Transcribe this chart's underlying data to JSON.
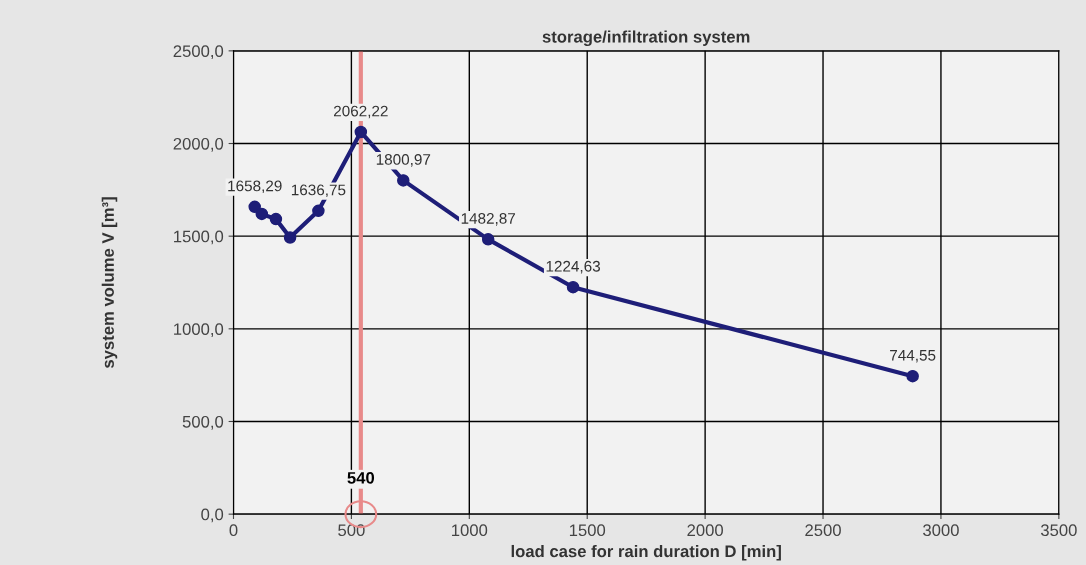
{
  "chart_data": {
    "type": "line",
    "title": "storage/infiltration system",
    "xlabel": "load case for rain duration D [min]",
    "ylabel": "system volume V [m³]",
    "x": [
      90,
      120,
      180,
      240,
      360,
      540,
      720,
      1080,
      1440,
      2880
    ],
    "series": [
      {
        "color": "#1e1e78",
        "values": [
          1658.29,
          1620,
          1592,
          1493,
          1636.75,
          2062.22,
          1800.97,
          1482.87,
          1224.63,
          744.55
        ],
        "value_labels": [
          "1658,29",
          null,
          null,
          null,
          "1636,75",
          "2062,22",
          "1800,97",
          "1482,87",
          "1224,63",
          "744,55"
        ]
      }
    ],
    "xlim": [
      0,
      3500
    ],
    "xticks": [
      0,
      500,
      1000,
      1500,
      2000,
      2500,
      3000,
      3500
    ],
    "ylim": [
      0,
      2500
    ],
    "yticks": [
      {
        "value": 0,
        "label": "0,0"
      },
      {
        "value": 500,
        "label": "500,0"
      },
      {
        "value": 1000,
        "label": "1000,0"
      },
      {
        "value": 1500,
        "label": "1500,0"
      },
      {
        "value": 2000,
        "label": "2000,0"
      },
      {
        "value": 2500,
        "label": "2500,0"
      }
    ],
    "grid": true,
    "marker": "circle",
    "line_style": "solid",
    "ref_lines": [
      {
        "axis": "x",
        "value": 540,
        "color": "#e88a8a"
      }
    ],
    "annotations": [
      {
        "text": "540",
        "x": 540,
        "y": 0
      }
    ]
  }
}
